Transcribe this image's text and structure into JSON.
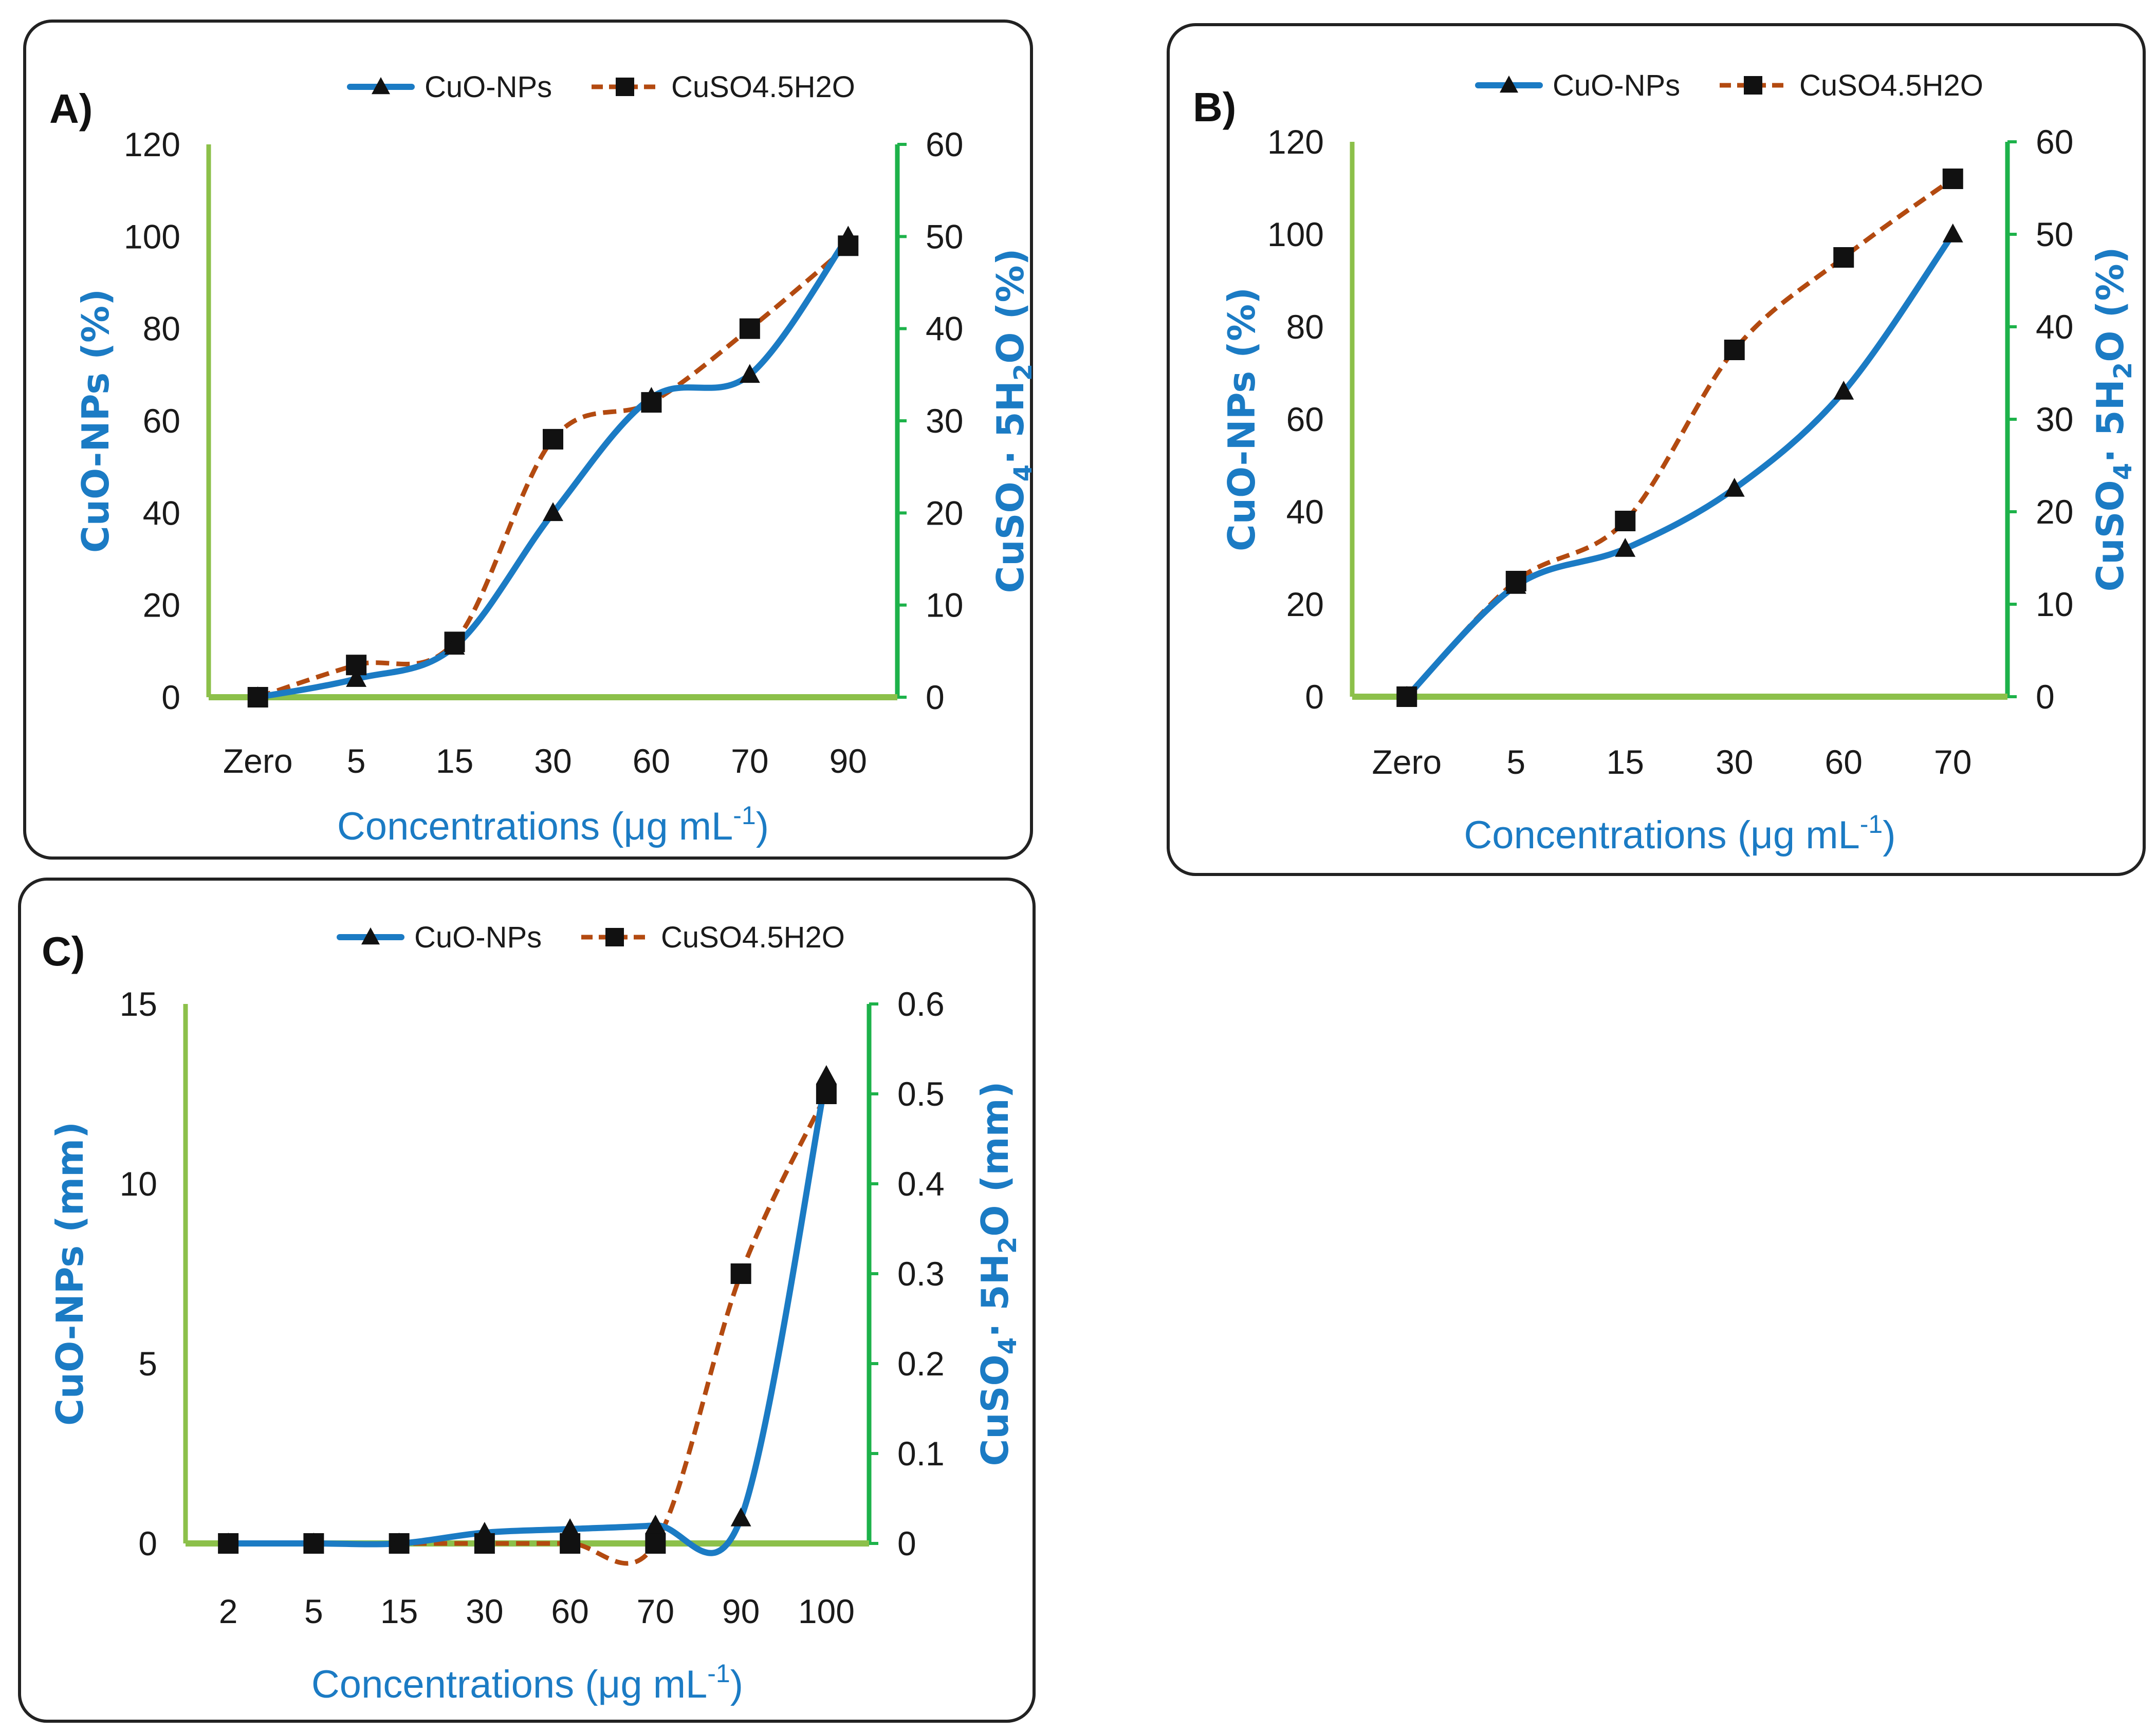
{
  "colors": {
    "cuo": "#1b7bc4",
    "cuso4": "#b34a10",
    "left_axis": "#8cc04a",
    "right_axis": "#1db24a",
    "label": "#1b7bc4",
    "marker": "#111111"
  },
  "legend": {
    "series1": "CuO-NPs",
    "series2": "CuSO4.5H2O"
  },
  "chart_data": [
    {
      "id": "A",
      "panel_label": "A)",
      "type": "line",
      "categories": [
        "Zero",
        "5",
        "15",
        "30",
        "60",
        "70",
        "90"
      ],
      "xlabel": {
        "main": "Concentrations (μg mL",
        "sup": "-1",
        "close": ")"
      },
      "ylabel_left": "CuO-NPs (%)",
      "ylabel_right": {
        "pre": "CuSO",
        "sub1": "4",
        "mid": "· 5H",
        "sub2": "2",
        "post": "O (%)"
      },
      "ylim_left": [
        0,
        120
      ],
      "yticks_left": [
        "0",
        "20",
        "40",
        "60",
        "80",
        "100",
        "120"
      ],
      "ylim_right": [
        0,
        60
      ],
      "yticks_right": [
        "0",
        "10",
        "20",
        "30",
        "40",
        "50",
        "60"
      ],
      "series": [
        {
          "name": "CuO-NPs",
          "axis": "left",
          "values": [
            0,
            4,
            11,
            40,
            65,
            70,
            100
          ]
        },
        {
          "name": "CuSO4.5H2O",
          "axis": "right",
          "values": [
            0,
            3.5,
            6,
            28,
            32,
            40,
            49
          ]
        }
      ]
    },
    {
      "id": "B",
      "panel_label": "B)",
      "type": "line",
      "categories": [
        "Zero",
        "5",
        "15",
        "30",
        "60",
        "70"
      ],
      "xlabel": {
        "main": "Concentrations (μg mL",
        "sup": "-1",
        "close": ")"
      },
      "ylabel_left": "CuO-NPs (%)",
      "ylabel_right": {
        "pre": "CuSO",
        "sub1": "4",
        "mid": "· 5H",
        "sub2": "2",
        "post": "O (%)"
      },
      "ylim_left": [
        0,
        120
      ],
      "yticks_left": [
        "0",
        "20",
        "40",
        "60",
        "80",
        "100",
        "120"
      ],
      "ylim_right": [
        0,
        60
      ],
      "yticks_right": [
        "0",
        "10",
        "20",
        "30",
        "40",
        "50",
        "60"
      ],
      "series": [
        {
          "name": "CuO-NPs",
          "axis": "left",
          "values": [
            0,
            24,
            32,
            45,
            66,
            100
          ]
        },
        {
          "name": "CuSO4.5H2O",
          "axis": "right",
          "values": [
            0,
            12.5,
            19,
            37.5,
            47.5,
            56
          ]
        }
      ]
    },
    {
      "id": "C",
      "panel_label": "C)",
      "type": "line",
      "categories": [
        "2",
        "5",
        "15",
        "30",
        "60",
        "70",
        "90",
        "100"
      ],
      "xlabel": {
        "main": "Concentrations (μg mL",
        "sup": "-1",
        "close": ")"
      },
      "ylabel_left": "CuO-NPs (mm)",
      "ylabel_right": {
        "pre": "CuSO",
        "sub1": "4",
        "mid": "· 5H",
        "sub2": "2",
        "post": "O (mm)"
      },
      "ylim_left": [
        0,
        15
      ],
      "yticks_left": [
        "0",
        "5",
        "10",
        "15"
      ],
      "ylim_right": [
        0,
        0.6
      ],
      "yticks_right": [
        "0",
        "0.1",
        "0.2",
        "0.3",
        "0.4",
        "0.5",
        "0.6"
      ],
      "series": [
        {
          "name": "CuO-NPs",
          "axis": "left",
          "values": [
            0,
            0,
            0,
            0.3,
            0.4,
            0.5,
            0.7,
            13
          ]
        },
        {
          "name": "CuSO4.5H2O",
          "axis": "right",
          "values": [
            0,
            0,
            0,
            0,
            0,
            0,
            0.3,
            0.5
          ]
        }
      ]
    }
  ]
}
